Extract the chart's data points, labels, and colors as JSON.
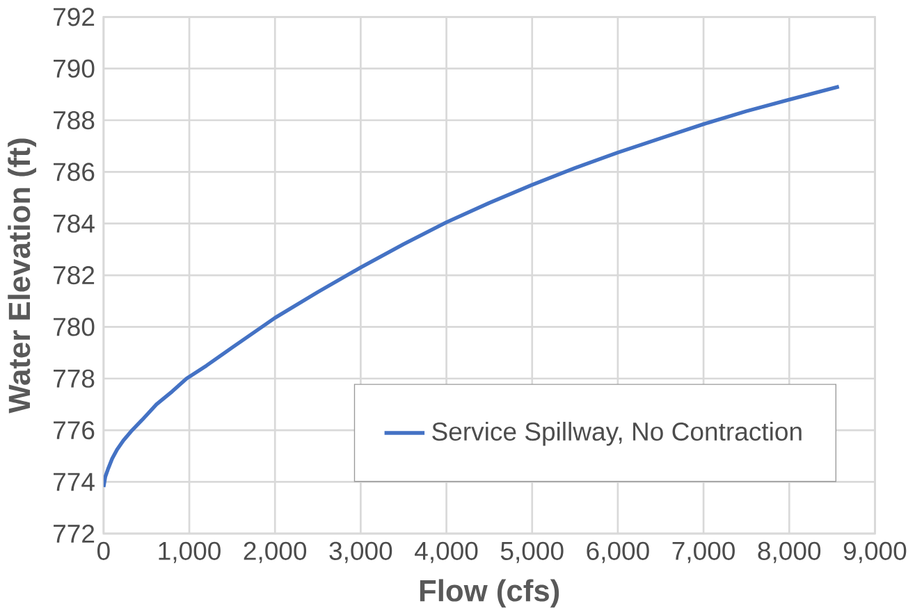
{
  "chart_data": {
    "type": "line",
    "xlabel": "Flow (cfs)",
    "ylabel": "Water Elevation (ft)",
    "x": [
      0,
      20,
      50,
      100,
      157,
      230,
      333,
      450,
      617,
      800,
      968,
      1200,
      1500,
      2000,
      2500,
      3000,
      3500,
      4000,
      4500,
      5000,
      5500,
      6000,
      6500,
      7000,
      7500,
      8000,
      8580
    ],
    "series": [
      {
        "name": "Service Spillway, No Contraction",
        "color": "#4472c4",
        "values": [
          773.8,
          774.2,
          774.48,
          774.9,
          775.25,
          775.6,
          776.0,
          776.4,
          777.0,
          777.5,
          778.0,
          778.5,
          779.2,
          780.35,
          781.35,
          782.3,
          783.2,
          784.05,
          784.8,
          785.5,
          786.15,
          786.75,
          787.3,
          787.85,
          788.35,
          788.8,
          789.3
        ]
      }
    ],
    "xlim": [
      0,
      9000
    ],
    "ylim": [
      772,
      792
    ],
    "xticks": [
      {
        "value": 0,
        "label": "0"
      },
      {
        "value": 1000,
        "label": "1,000"
      },
      {
        "value": 2000,
        "label": "2,000"
      },
      {
        "value": 3000,
        "label": "3,000"
      },
      {
        "value": 4000,
        "label": "4,000"
      },
      {
        "value": 5000,
        "label": "5,000"
      },
      {
        "value": 6000,
        "label": "6,000"
      },
      {
        "value": 7000,
        "label": "7,000"
      },
      {
        "value": 8000,
        "label": "8,000"
      },
      {
        "value": 9000,
        "label": "9,000"
      }
    ],
    "yticks": [
      772,
      774,
      776,
      778,
      780,
      782,
      784,
      786,
      788,
      790,
      792
    ],
    "grid": true,
    "legend": "bottom right",
    "marker": "none",
    "line_style": "solid"
  }
}
